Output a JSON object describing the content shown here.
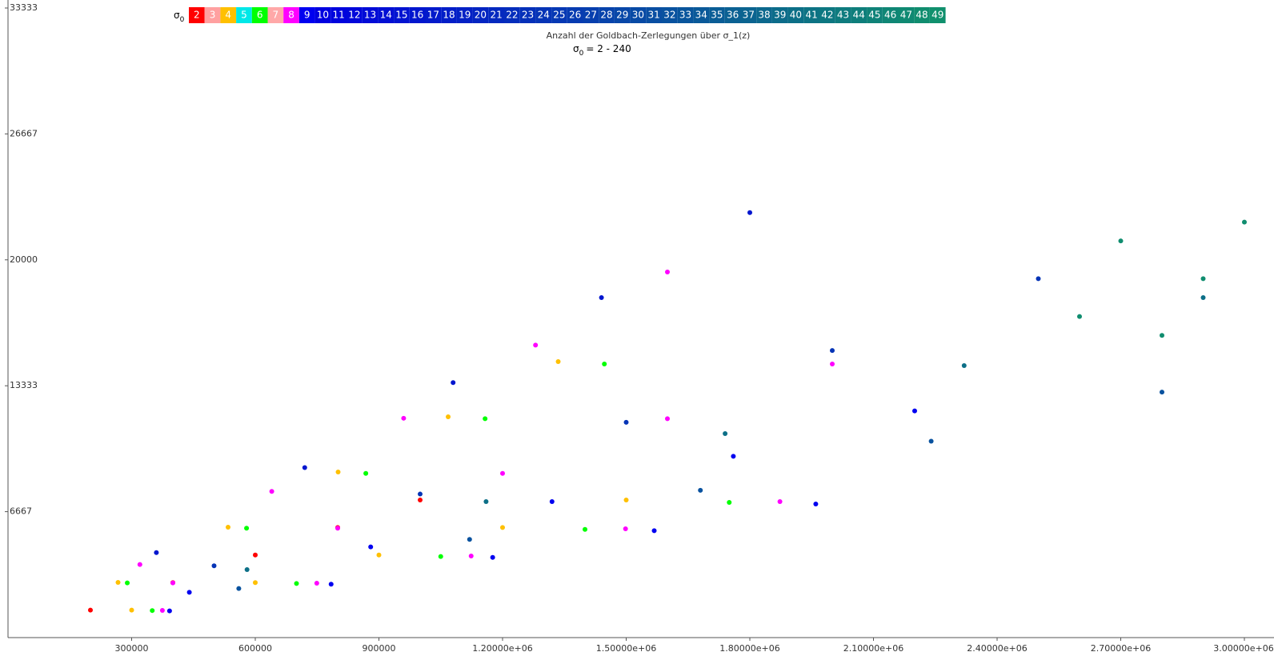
{
  "chart_data": {
    "type": "scatter",
    "title": "Anzahl der Goldbach-Zerlegungen über σ_1(z)",
    "subtitle": {
      "symbol": "σ",
      "subscript": "0",
      "text": "= 2 - 240"
    },
    "legend_title": {
      "symbol": "σ",
      "subscript": "0"
    },
    "legend": "top",
    "xlim": [
      0,
      3000000
    ],
    "ylim": [
      0,
      33333
    ],
    "xticks": [
      300000,
      600000,
      900000,
      {
        "value": 1200000,
        "label": "1.20000e+06"
      },
      {
        "value": 1500000,
        "label": "1.50000e+06"
      },
      {
        "value": 1800000,
        "label": "1.80000e+06"
      },
      {
        "value": 2100000,
        "label": "2.10000e+06"
      },
      {
        "value": 2400000,
        "label": "2.40000e+06"
      },
      {
        "value": 2700000,
        "label": "2.70000e+06"
      },
      {
        "value": 3000000,
        "label": "3.00000e+06"
      }
    ],
    "yticks": [
      6667,
      13333,
      20000,
      26667,
      33333
    ],
    "series": [
      {
        "name": "2",
        "color": "#ff0000",
        "x": [
          200000,
          400000,
          600000,
          800000,
          1000000
        ],
        "values": [
          1457,
          2914,
          4371,
          5828,
          7285
        ]
      },
      {
        "name": "3",
        "color": "#ffa0a0",
        "x": [],
        "values": []
      },
      {
        "name": "4",
        "color": "#ffc000",
        "x": [
          267000,
          534000,
          801000,
          1068000,
          1335000,
          300000,
          600000,
          900000,
          1200000,
          1500000
        ],
        "values": [
          2922,
          5845,
          8767,
          11690,
          14612,
          1457,
          2914,
          4371,
          5828,
          7285
        ]
      },
      {
        "name": "5",
        "color": "#00e8e8",
        "x": [],
        "values": []
      },
      {
        "name": "6",
        "color": "#00ff00",
        "x": [
          289400,
          578800,
          868200,
          1157600,
          1447000,
          350000,
          700000,
          1050000,
          1400000,
          1750000
        ],
        "values": [
          2897,
          5794,
          8691,
          11588,
          14485,
          1432,
          2863,
          4295,
          5726,
          7158
        ]
      },
      {
        "name": "7",
        "color": "#ffa8a8",
        "x": [],
        "values": []
      },
      {
        "name": "8",
        "color": "#ff00ff",
        "x": [
          320000,
          640000,
          960000,
          1280000,
          1600000,
          400000,
          800000,
          1200000,
          1600000,
          2000000,
          374600,
          749200,
          1123800,
          1498400,
          1873000
        ],
        "values": [
          3871,
          7742,
          11613,
          15484,
          19355,
          2897,
          5794,
          8691,
          11588,
          14485,
          1440,
          2880,
          4320,
          5760,
          7200
        ]
      },
      {
        "name": "9",
        "color": "#0000f0",
        "x": [
          392000,
          784000,
          1176000,
          1568000,
          1960000,
          440000,
          880000,
          1320000,
          1760000,
          2200000
        ],
        "values": [
          1415,
          2829,
          4244,
          5658,
          7073,
          2400,
          4800,
          7200,
          9600,
          12000
        ]
      },
      {
        "name": "10",
        "color": "#0000e0",
        "x": [],
        "values": []
      },
      {
        "name": "11",
        "color": "#0004dd",
        "x": [],
        "values": []
      },
      {
        "name": "12",
        "color": "#0107da",
        "x": [],
        "values": []
      },
      {
        "name": "13",
        "color": "#010bd7",
        "x": [],
        "values": []
      },
      {
        "name": "14",
        "color": "#020fd4",
        "x": [],
        "values": []
      },
      {
        "name": "15",
        "color": "#0213d1",
        "x": [],
        "values": []
      },
      {
        "name": "16",
        "color": "#0216ce",
        "x": [
          360000,
          720000,
          1080000,
          1440000,
          1800000
        ],
        "values": [
          4500,
          9000,
          13500,
          18000,
          22500
        ]
      },
      {
        "name": "17",
        "color": "#031acb",
        "x": [],
        "values": []
      },
      {
        "name": "18",
        "color": "#031ec8",
        "x": [],
        "values": []
      },
      {
        "name": "19",
        "color": "#0421c5",
        "x": [],
        "values": []
      },
      {
        "name": "20",
        "color": "#0425c2",
        "x": [],
        "values": []
      },
      {
        "name": "21",
        "color": "#0429bf",
        "x": [],
        "values": []
      },
      {
        "name": "22",
        "color": "#052dbc",
        "x": [],
        "values": []
      },
      {
        "name": "23",
        "color": "#0530b9",
        "x": [],
        "values": []
      },
      {
        "name": "24",
        "color": "#0634b6",
        "x": [
          500000,
          1000000,
          1500000,
          2000000,
          2500000
        ],
        "values": [
          3800,
          7600,
          11400,
          15200,
          19000
        ]
      },
      {
        "name": "25",
        "color": "#0638b4",
        "x": [],
        "values": []
      },
      {
        "name": "26",
        "color": "#073bb1",
        "x": [],
        "values": []
      },
      {
        "name": "27",
        "color": "#073fae",
        "x": [],
        "values": []
      },
      {
        "name": "28",
        "color": "#0743ab",
        "x": [],
        "values": []
      },
      {
        "name": "29",
        "color": "#0847a8",
        "x": [],
        "values": []
      },
      {
        "name": "30",
        "color": "#084aa5",
        "x": [],
        "values": []
      },
      {
        "name": "31",
        "color": "#094ea2",
        "x": [],
        "values": []
      },
      {
        "name": "32",
        "color": "#09529f",
        "x": [
          560000,
          1120000,
          1680000,
          2240000,
          2800000
        ],
        "values": [
          2600,
          5200,
          7800,
          10400,
          13000
        ]
      },
      {
        "name": "33",
        "color": "#09559c",
        "x": [],
        "values": []
      },
      {
        "name": "34",
        "color": "#0a5999",
        "x": [],
        "values": []
      },
      {
        "name": "35",
        "color": "#0a5d96",
        "x": [],
        "values": []
      },
      {
        "name": "36",
        "color": "#0b6193",
        "x": [],
        "values": []
      },
      {
        "name": "37",
        "color": "#0b6490",
        "x": [],
        "values": []
      },
      {
        "name": "38",
        "color": "#0c688d",
        "x": [],
        "values": []
      },
      {
        "name": "39",
        "color": "#0c6c8a",
        "x": [],
        "values": []
      },
      {
        "name": "40",
        "color": "#0c6f87",
        "x": [
          580000,
          1160000,
          1740000,
          2320000,
          2900000
        ],
        "values": [
          3600,
          7200,
          10800,
          14400,
          18000
        ]
      },
      {
        "name": "41",
        "color": "#0d7384",
        "x": [],
        "values": []
      },
      {
        "name": "42",
        "color": "#0d7781",
        "x": [],
        "values": []
      },
      {
        "name": "43",
        "color": "#0e7b7e",
        "x": [],
        "values": []
      },
      {
        "name": "44",
        "color": "#0e7e7b",
        "x": [],
        "values": []
      },
      {
        "name": "45",
        "color": "#0f8278",
        "x": [],
        "values": []
      },
      {
        "name": "46",
        "color": "#0f8675",
        "x": [],
        "values": []
      },
      {
        "name": "47",
        "color": "#0f8972",
        "x": [],
        "values": []
      },
      {
        "name": "48",
        "color": "#108d6f",
        "x": [
          2600000,
          2700000,
          2800000,
          2900000,
          3000000
        ],
        "values": [
          17000,
          21000,
          16000,
          19000,
          22000
        ]
      },
      {
        "name": "49",
        "color": "#10906d",
        "x": [],
        "values": []
      }
    ]
  }
}
